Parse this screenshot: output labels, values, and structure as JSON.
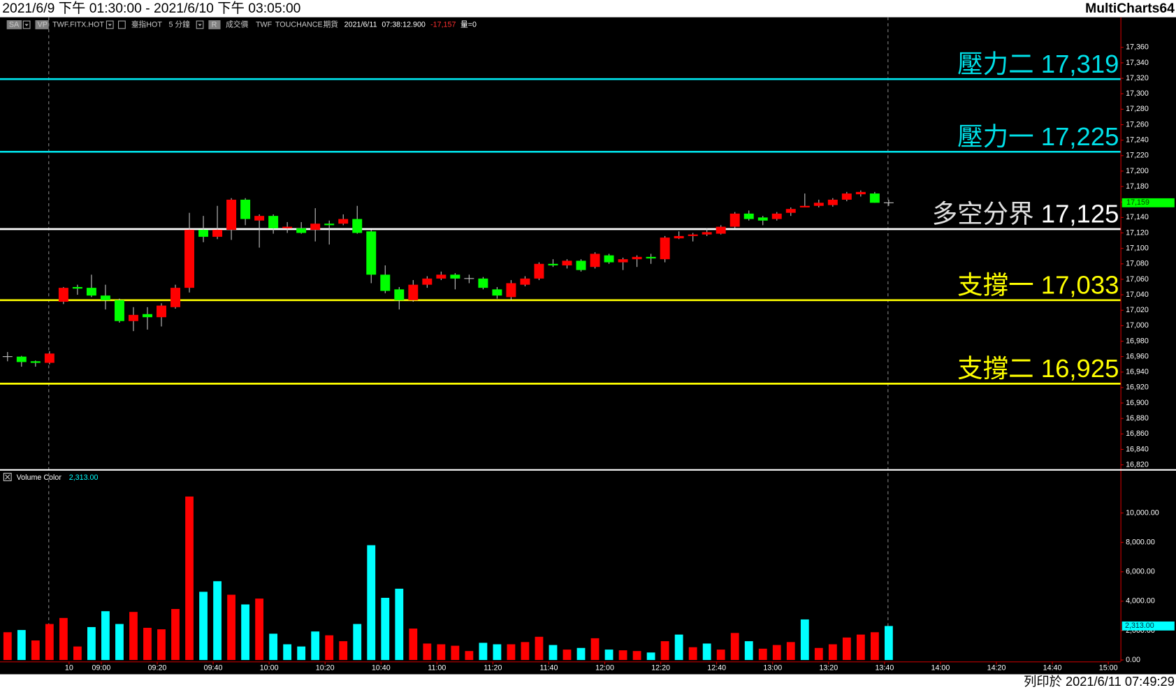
{
  "header": {
    "range": "2021/6/9 下午 01:30:00 - 2021/6/10 下午 03:05:00",
    "app": "MultiCharts64"
  },
  "toolbar": [
    "SA",
    "VP",
    "TWF.FITX.HOT",
    "臺指HOT",
    "5 分鐘",
    "R",
    "成交價",
    "TWF",
    "TOUCHANCE",
    "期貨",
    "2021/6/11",
    "07:38:12.900",
    "-17,157",
    "量=0"
  ],
  "footer": "列印於 2021/6/11 07:49:29",
  "chart_data": [
    {
      "type": "candlestick",
      "open": [
        16960,
        16960,
        16954,
        16952,
        17031,
        17050,
        17049,
        17039,
        17033,
        17006,
        17015,
        17011,
        17024,
        17049,
        17124,
        17115,
        17124,
        17163,
        17136,
        17142,
        17126,
        17126,
        17124,
        17132,
        17132,
        17138,
        17122,
        17066,
        17047,
        17033,
        17053,
        17061,
        17066,
        17061,
        17061,
        17047,
        17037,
        17053,
        17061,
        17080,
        17078,
        17084,
        17076,
        17091,
        17082,
        17086,
        17089,
        17086,
        17113,
        17116,
        17118,
        17119,
        17128,
        17145,
        17140,
        17138,
        17146,
        17153,
        17155,
        17156,
        17163,
        17170,
        17171,
        17159
      ],
      "high": [
        16966,
        16961,
        16955,
        16967,
        17050,
        17053,
        17066,
        17053,
        17035,
        17024,
        17024,
        17029,
        17053,
        17146,
        17142,
        17155,
        17165,
        17165,
        17144,
        17144,
        17134,
        17134,
        17152,
        17136,
        17144,
        17155,
        17124,
        17078,
        17050,
        17059,
        17064,
        17070,
        17068,
        17066,
        17063,
        17050,
        17059,
        17064,
        17082,
        17086,
        17086,
        17086,
        17095,
        17093,
        17088,
        17091,
        17093,
        17116,
        17122,
        17120,
        17126,
        17130,
        17147,
        17149,
        17142,
        17147,
        17153,
        17171,
        17163,
        17165,
        17173,
        17175,
        17173,
        17163
      ],
      "low": [
        16954,
        16947,
        16947,
        16950,
        17028,
        17040,
        17037,
        17021,
        17004,
        16993,
        16995,
        16999,
        17022,
        17043,
        17108,
        17112,
        17111,
        17130,
        17101,
        17119,
        17120,
        17119,
        17109,
        17105,
        17130,
        17119,
        17055,
        17042,
        17021,
        17031,
        17049,
        17059,
        17047,
        17055,
        17047,
        17035,
        17033,
        17051,
        17059,
        17076,
        17074,
        17070,
        17074,
        17080,
        17072,
        17076,
        17080,
        17082,
        17112,
        17109,
        17116,
        17118,
        17126,
        17136,
        17130,
        17136,
        17142,
        17153,
        17153,
        17154,
        17161,
        17167,
        17159,
        17155
      ],
      "close": [
        16960,
        16953,
        16952,
        16964,
        17049,
        17048,
        17039,
        17033,
        17006,
        17014,
        17011,
        17026,
        17049,
        17124,
        17115,
        17124,
        17163,
        17138,
        17142,
        17126,
        17128,
        17120,
        17132,
        17130,
        17138,
        17120,
        17066,
        17045,
        17033,
        17053,
        17061,
        17066,
        17061,
        17061,
        17049,
        17039,
        17055,
        17061,
        17080,
        17078,
        17084,
        17072,
        17093,
        17082,
        17086,
        17089,
        17087,
        17114,
        17116,
        17118,
        17121,
        17128,
        17145,
        17138,
        17136,
        17145,
        17151,
        17155,
        17159,
        17163,
        17171,
        17173,
        17159,
        17159
      ],
      "up_color": "#ff0000",
      "down_color": "#00ff00",
      "doji_color": "#c8c8c8",
      "wick_color": "#c8c8c8",
      "xlim": [
        -0.54,
        79.57
      ],
      "ylim": [
        16814,
        17398
      ],
      "yticks": [
        {
          "value": 16820,
          "label": "16,820"
        },
        {
          "value": 16840,
          "label": "16,840"
        },
        {
          "value": 16860,
          "label": "16,860"
        },
        {
          "value": 16880,
          "label": "16,880"
        },
        {
          "value": 16900,
          "label": "16,900"
        },
        {
          "value": 16920,
          "label": "16,920"
        },
        {
          "value": 16940,
          "label": "16,940"
        },
        {
          "value": 16960,
          "label": "16,960"
        },
        {
          "value": 16980,
          "label": "16,980"
        },
        {
          "value": 17000,
          "label": "17,000"
        },
        {
          "value": 17020,
          "label": "17,020"
        },
        {
          "value": 17040,
          "label": "17,040"
        },
        {
          "value": 17060,
          "label": "17,060"
        },
        {
          "value": 17080,
          "label": "17,080"
        },
        {
          "value": 17100,
          "label": "17,100"
        },
        {
          "value": 17120,
          "label": "17,120"
        },
        {
          "value": 17140,
          "label": "17,140"
        },
        {
          "value": 17160,
          "label": "17,160"
        },
        {
          "value": 17180,
          "label": "17,180"
        },
        {
          "value": 17200,
          "label": "17,200"
        },
        {
          "value": 17220,
          "label": "17,220"
        },
        {
          "value": 17240,
          "label": "17,240"
        },
        {
          "value": 17260,
          "label": "17,260"
        },
        {
          "value": 17280,
          "label": "17,280"
        },
        {
          "value": 17300,
          "label": "17,300"
        },
        {
          "value": 17320,
          "label": "17,320"
        },
        {
          "value": 17340,
          "label": "17,340"
        },
        {
          "value": 17360,
          "label": "17,360"
        }
      ],
      "levels": [
        {
          "name": "壓力二",
          "value": 17319,
          "label": "17,319",
          "color": "#00e0e8",
          "name_color": "#00e0e8"
        },
        {
          "name": "壓力一",
          "value": 17225,
          "label": "17,225",
          "color": "#00e0e8",
          "name_color": "#00e0e8"
        },
        {
          "name": "多空分界",
          "value": 17125,
          "label": "17,125",
          "color": "#ffffff",
          "name_color": "#e0e0e0"
        },
        {
          "name": "支撐一",
          "value": 17033,
          "label": "17,033",
          "color": "#ffff00",
          "name_color": "#ffff00"
        },
        {
          "name": "支撐二",
          "value": 16925,
          "label": "16,925",
          "color": "#ffff00",
          "name_color": "#ffff00"
        }
      ],
      "last": {
        "value": 17159,
        "label": "17,159",
        "color": "#00ff00"
      }
    },
    {
      "type": "bar",
      "name": "Volume Color",
      "values": [
        1890,
        2040,
        1330,
        2450,
        2860,
        920,
        2240,
        3320,
        2450,
        3270,
        2190,
        2090,
        3470,
        11120,
        4640,
        5360,
        4440,
        3780,
        4180,
        1790,
        1070,
        920,
        1940,
        1680,
        1280,
        2450,
        7810,
        4230,
        4850,
        2140,
        1120,
        1070,
        970,
        610,
        1170,
        1070,
        1070,
        1220,
        1580,
        1020,
        710,
        820,
        1480,
        710,
        660,
        610,
        510,
        1280,
        1730,
        870,
        1120,
        710,
        1840,
        1280,
        770,
        1020,
        1220,
        2760,
        820,
        1070,
        1530,
        1730,
        1890,
        2313
      ],
      "colors": [
        "#ff0000",
        "#00ffff",
        "#ff0000",
        "#ff0000",
        "#ff0000",
        "#ff0000",
        "#00ffff",
        "#00ffff",
        "#00ffff",
        "#ff0000",
        "#ff0000",
        "#ff0000",
        "#ff0000",
        "#ff0000",
        "#00ffff",
        "#00ffff",
        "#ff0000",
        "#00ffff",
        "#ff0000",
        "#00ffff",
        "#00ffff",
        "#00ffff",
        "#00ffff",
        "#ff0000",
        "#ff0000",
        "#00ffff",
        "#00ffff",
        "#00ffff",
        "#00ffff",
        "#ff0000",
        "#ff0000",
        "#ff0000",
        "#ff0000",
        "#ff0000",
        "#00ffff",
        "#00ffff",
        "#ff0000",
        "#ff0000",
        "#ff0000",
        "#00ffff",
        "#ff0000",
        "#00ffff",
        "#ff0000",
        "#00ffff",
        "#ff0000",
        "#ff0000",
        "#00ffff",
        "#ff0000",
        "#00ffff",
        "#ff0000",
        "#00ffff",
        "#ff0000",
        "#ff0000",
        "#00ffff",
        "#ff0000",
        "#ff0000",
        "#ff0000",
        "#00ffff",
        "#ff0000",
        "#ff0000",
        "#ff0000",
        "#ff0000",
        "#ff0000",
        "#00ffff"
      ],
      "xlim": [
        -0.54,
        79.57
      ],
      "ylim": [
        0,
        12857
      ],
      "yticks": [
        {
          "value": 0,
          "label": "0.00"
        },
        {
          "value": 2000,
          "label": "2,000.00"
        },
        {
          "value": 4000,
          "label": "4,000.00"
        },
        {
          "value": 6000,
          "label": "6,000.00"
        },
        {
          "value": 8000,
          "label": "8,000.00"
        },
        {
          "value": 10000,
          "label": "10,000.00"
        }
      ],
      "xticks": [
        {
          "value": 4.4,
          "label": "10"
        },
        {
          "value": 6.7,
          "label": "09:00"
        },
        {
          "value": 10.7,
          "label": "09:20"
        },
        {
          "value": 14.7,
          "label": "09:40"
        },
        {
          "value": 18.7,
          "label": "10:00"
        },
        {
          "value": 22.7,
          "label": "10:20"
        },
        {
          "value": 26.7,
          "label": "10:40"
        },
        {
          "value": 30.7,
          "label": "11:00"
        },
        {
          "value": 34.7,
          "label": "11:20"
        },
        {
          "value": 38.7,
          "label": "11:40"
        },
        {
          "value": 42.7,
          "label": "12:00"
        },
        {
          "value": 46.7,
          "label": "12:20"
        },
        {
          "value": 50.7,
          "label": "12:40"
        },
        {
          "value": 54.7,
          "label": "13:00"
        },
        {
          "value": 58.7,
          "label": "13:20"
        },
        {
          "value": 62.7,
          "label": "13:40"
        },
        {
          "value": 66.7,
          "label": "14:00"
        },
        {
          "value": 70.7,
          "label": "14:20"
        },
        {
          "value": 74.7,
          "label": "14:40"
        },
        {
          "value": 78.7,
          "label": "15:00"
        }
      ],
      "last": {
        "value": 2313,
        "label": "2,313.00",
        "color": "#00ffff"
      }
    }
  ]
}
